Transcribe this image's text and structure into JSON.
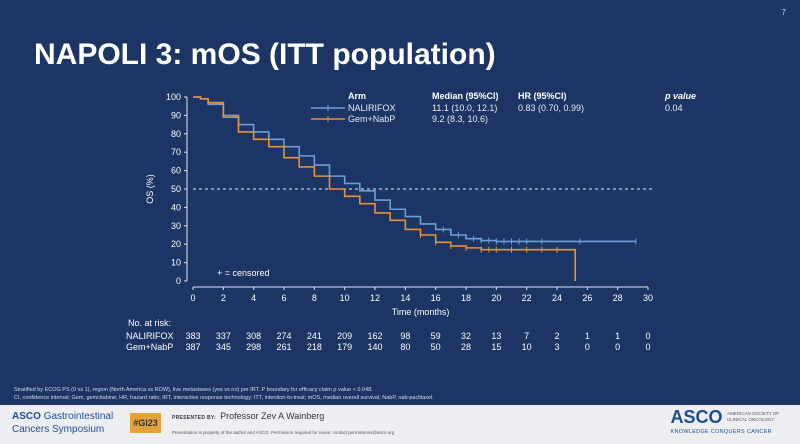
{
  "slide_number": "7",
  "title": "NAPOLI 3: mOS (ITT population)",
  "chart_data": {
    "type": "line",
    "subtype": "kaplan-meier",
    "xlabel": "Time (months)",
    "ylabel": "OS (%)",
    "xlim": [
      0,
      30
    ],
    "ylim": [
      0,
      100
    ],
    "xticks": [
      0,
      2,
      4,
      6,
      8,
      10,
      12,
      14,
      16,
      18,
      20,
      22,
      24,
      26,
      28,
      30
    ],
    "yticks": [
      0,
      10,
      20,
      30,
      40,
      50,
      60,
      70,
      80,
      90,
      100
    ],
    "reference_line_y": 50,
    "censored_note": "+ = censored",
    "legend": {
      "headers": {
        "arm": "Arm",
        "median": "Median (95%CI)",
        "hr": "HR (95%CI)",
        "p": "p value"
      },
      "rows": [
        {
          "arm": "NALIRIFOX",
          "median": "11.1 (10.0, 12.1)",
          "hr": "0.83 (0.70, 0.99)",
          "p": "0.04"
        },
        {
          "arm": "Gem+NabP",
          "median": "9.2 (8.3, 10.6)",
          "hr": "",
          "p": ""
        }
      ]
    },
    "series": [
      {
        "name": "NALIRIFOX",
        "color": "#6f9fd8",
        "x": [
          0,
          0.5,
          1,
          2,
          3,
          4,
          5,
          6,
          7,
          8,
          9,
          10,
          11,
          12,
          13,
          14,
          15,
          16,
          17,
          18,
          19,
          20,
          22,
          24,
          26,
          28,
          29.2
        ],
        "y": [
          100,
          99,
          96,
          90,
          85,
          81,
          77,
          73,
          68,
          63,
          57,
          53,
          49,
          44,
          39,
          35,
          31,
          28,
          25,
          23,
          22,
          21.5,
          21.5,
          21.5,
          21.5,
          21.5,
          21.5
        ],
        "censor_x": [
          16.5,
          17.5,
          18.5,
          19,
          19.5,
          20,
          20.5,
          21,
          21.5,
          22,
          23,
          25.5,
          29.2
        ]
      },
      {
        "name": "Gem+NabP",
        "color": "#e8923a",
        "x": [
          0,
          0.5,
          1,
          2,
          3,
          4,
          5,
          6,
          7,
          8,
          9,
          10,
          11,
          12,
          13,
          14,
          15,
          16,
          17,
          18,
          19,
          20,
          22,
          24,
          25.2,
          25.2
        ],
        "y": [
          100,
          99,
          97,
          89,
          81,
          77,
          73,
          67,
          62,
          57,
          50,
          46,
          42,
          37,
          33,
          28,
          25,
          21,
          19,
          18,
          17,
          17,
          17,
          17,
          17,
          0
        ],
        "censor_x": [
          15,
          16,
          17,
          18,
          19,
          19.5,
          20,
          21,
          22,
          23,
          24
        ]
      }
    ],
    "at_risk": {
      "label": "No. at risk:",
      "rows": [
        {
          "arm": "NALIRIFOX",
          "values": [
            "383",
            "337",
            "308",
            "274",
            "241",
            "209",
            "162",
            "98",
            "59",
            "32",
            "13",
            "7",
            "2",
            "1",
            "1",
            "0"
          ]
        },
        {
          "arm": "Gem+NabP",
          "values": [
            "387",
            "345",
            "298",
            "261",
            "218",
            "179",
            "140",
            "80",
            "50",
            "28",
            "15",
            "10",
            "3",
            "0",
            "0",
            "0"
          ]
        }
      ]
    }
  },
  "footnotes": [
    "Stratified by ECOG PS (0 vs 1), region (North America vs ROW), live metastases (yes vs no) per IRT. P boundary for efficacy claim p value < 0.048.",
    "CI, confidence interval; Gem, gemcitabine; HR, hazard ratio; IRT, interactive response technology; ITT, intention-to-treat; mOS, median overall survival; NabP, nab-paclitaxel."
  ],
  "footer": {
    "event_bold": "ASCO",
    "event_line1": "Gastrointestinal",
    "event_line2": "Cancers Symposium",
    "hashtag": "#GI23",
    "presented_by": "PRESENTED BY:",
    "presenter": "Professor Zev A Wainberg",
    "notice": "Presentation is property of the author and ASCO. Permission required for reuse; contact permissions@asco.org",
    "asco": "ASCO",
    "society": "AMERICAN SOCIETY OF CLINICAL ONCOLOGY",
    "tagline": "KNOWLEDGE CONQUERS CANCER"
  }
}
